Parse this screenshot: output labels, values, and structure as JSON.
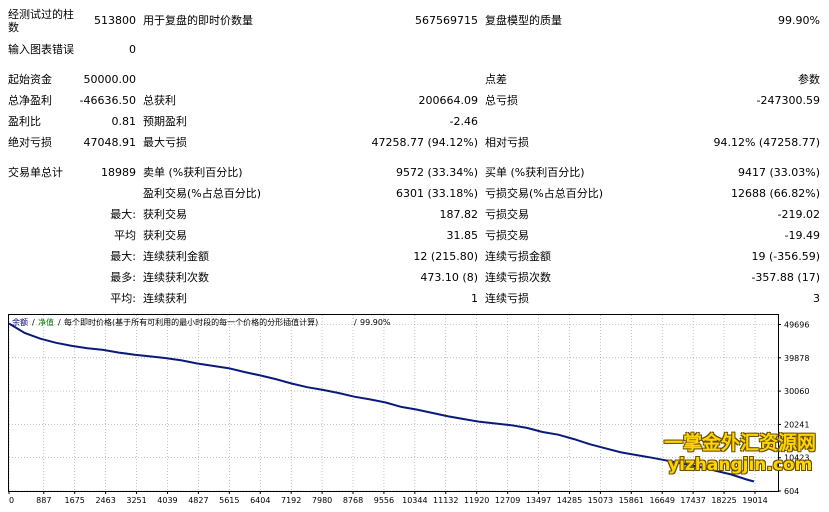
{
  "report": {
    "bars_tested_label": "经测试过的柱数",
    "bars_tested_value": "513800",
    "ticks_label": "用于复盘的即时价数量",
    "ticks_value": "567569715",
    "quality_label": "复盘模型的质量",
    "quality_value": "99.90%",
    "errors_label": "输入图表错误",
    "errors_value": "0",
    "initial_deposit_label": "起始资金",
    "initial_deposit_value": "50000.00",
    "spread_label": "点差",
    "spread_value": "参数",
    "net_profit_label": "总净盈利",
    "net_profit_value": "-46636.50",
    "gross_profit_label": "总获利",
    "gross_profit_value": "200664.09",
    "gross_loss_label": "总亏损",
    "gross_loss_value": "-247300.59",
    "profit_factor_label": "盈利比",
    "profit_factor_value": "0.81",
    "expected_payoff_label": "预期盈利",
    "expected_payoff_value": "-2.46",
    "abs_drawdown_label": "绝对亏损",
    "abs_drawdown_value": "47048.91",
    "max_drawdown_label": "最大亏损",
    "max_drawdown_value": "47258.77 (94.12%)",
    "rel_drawdown_label": "相对亏损",
    "rel_drawdown_value": "94.12% (47258.77)",
    "total_trades_label": "交易单总计",
    "total_trades_value": "18989",
    "short_label": "卖单 (%获利百分比)",
    "short_value": "9572 (33.34%)",
    "long_label": "买单 (%获利百分比)",
    "long_value": "9417 (33.03%)",
    "profit_trades_label": "盈利交易(%占总百分比)",
    "profit_trades_value": "6301 (33.18%)",
    "loss_trades_label": "亏损交易(%占总百分比)",
    "loss_trades_value": "12688 (66.82%)",
    "largest_label": "最大:",
    "largest_profit_label": "获利交易",
    "largest_profit_value": "187.82",
    "largest_loss_label": "亏损交易",
    "largest_loss_value": "-219.02",
    "average_label": "平均",
    "avg_profit_label": "获利交易",
    "avg_profit_value": "31.85",
    "avg_loss_label": "亏损交易",
    "avg_loss_value": "-19.49",
    "max_cons_label": "最大:",
    "max_cons_wins_label": "连续获利金额",
    "max_cons_wins_value": "12 (215.80)",
    "max_cons_losses_label": "连续亏损金额",
    "max_cons_losses_value": "19 (-356.59)",
    "maximal_label": "最多:",
    "maximal_profit_label": "连续获利次数",
    "maximal_profit_value": "473.10 (8)",
    "maximal_loss_label": "连续亏损次数",
    "maximal_loss_value": "-357.88 (17)",
    "avg_cons_label": "平均:",
    "avg_cons_wins_label": "连续获利",
    "avg_cons_wins_value": "1",
    "avg_cons_losses_label": "连续亏损",
    "avg_cons_losses_value": "3"
  },
  "chart_legend": {
    "balance": "余额",
    "sep1": "/",
    "equity": "净值",
    "sep2": "/",
    "model": "每个即时价格(基于所有可利用的最小时段的每一个价格的分形插值计算)",
    "sep3": "/",
    "quality": "99.90%"
  },
  "watermark": {
    "line1": "一掌金外汇资源网",
    "line2": "yizhangjin.com"
  },
  "colors": {
    "line": "#0a1a7a",
    "legend_balance": "#000080",
    "legend_equity": "#008000",
    "grid": "#9a9a9a"
  },
  "chart_data": {
    "type": "line",
    "title": "",
    "xlabel": "",
    "ylabel": "",
    "xlim": [
      0,
      19600
    ],
    "ylim": [
      604,
      52500
    ],
    "x_ticks": [
      0,
      887,
      1675,
      2463,
      3251,
      4039,
      4827,
      5615,
      6404,
      7192,
      7980,
      8768,
      9556,
      10344,
      11132,
      11920,
      12709,
      13497,
      14285,
      15073,
      15861,
      16649,
      17437,
      18225,
      19014
    ],
    "y_ticks": [
      604,
      10423,
      20241,
      30060,
      39878,
      49696
    ],
    "grid": true,
    "series": [
      {
        "name": "余额",
        "x": [
          0,
          400,
          800,
          1200,
          1600,
          2000,
          2400,
          2800,
          3200,
          3600,
          4000,
          4400,
          4800,
          5200,
          5600,
          6000,
          6400,
          6800,
          7200,
          7600,
          8000,
          8400,
          8800,
          9200,
          9600,
          10000,
          10400,
          10800,
          11200,
          11600,
          12000,
          12400,
          12800,
          13200,
          13600,
          14000,
          14400,
          14800,
          15200,
          15600,
          16000,
          16400,
          16800,
          17200,
          17600,
          18000,
          18400,
          18800,
          18989
        ],
        "y": [
          50000,
          47200,
          45500,
          44300,
          43400,
          42700,
          42200,
          41400,
          40800,
          40300,
          39800,
          39100,
          38200,
          37500,
          36800,
          35700,
          34700,
          33600,
          32300,
          31200,
          30400,
          29500,
          28400,
          27600,
          26700,
          25400,
          24600,
          23600,
          22600,
          21800,
          21000,
          20500,
          20000,
          19200,
          18000,
          17200,
          15900,
          14400,
          13200,
          12000,
          11200,
          10400,
          9500,
          8600,
          7700,
          6600,
          5500,
          4000,
          3400
        ]
      }
    ]
  }
}
